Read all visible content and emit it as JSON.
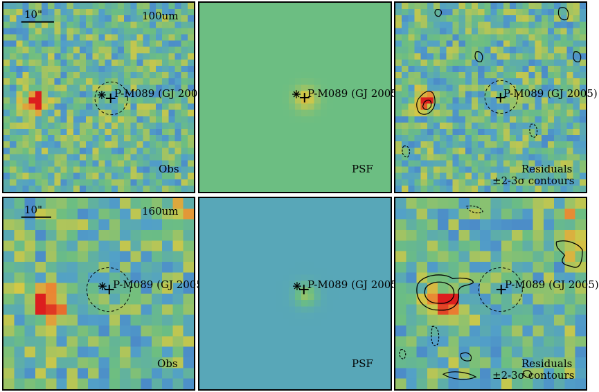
{
  "source_label": "P-M089 (GJ 2005)",
  "rows": [
    {
      "band": "100um",
      "scale_bar": "10\"",
      "panels": [
        {
          "kind": "obs",
          "label": "Obs"
        },
        {
          "kind": "psf",
          "label": "PSF"
        },
        {
          "kind": "res",
          "label": "Residuals",
          "sublabel": "±2-3σ contours"
        }
      ]
    },
    {
      "band": "160um",
      "scale_bar": "10\"",
      "panels": [
        {
          "kind": "obs",
          "label": "Obs"
        },
        {
          "kind": "psf",
          "label": "PSF"
        },
        {
          "kind": "res",
          "label": "Residuals",
          "sublabel": "±2-3σ contours"
        }
      ]
    }
  ],
  "colors": {
    "psf_bg_row1": "#6dbb84",
    "psf_bg_row2": "#5aa2b6",
    "frame": "#000000"
  }
}
